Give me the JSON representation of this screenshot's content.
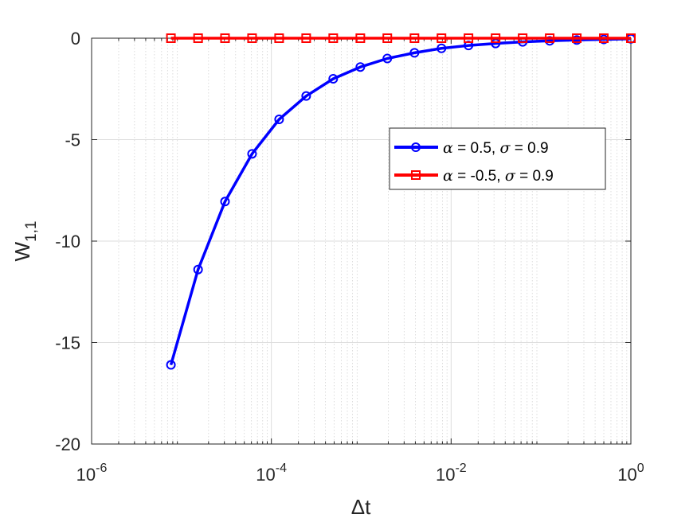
{
  "chart_data": {
    "type": "line",
    "xscale": "log",
    "xlim": [
      1e-06,
      1
    ],
    "ylim": [
      -20,
      0
    ],
    "grid": true,
    "minor_grid_x": true,
    "xlabel": "Δt",
    "ylabel": {
      "base": "W",
      "subscript": "1,1"
    },
    "x_ticks": [
      {
        "base": "10",
        "exp": "-6",
        "value": 1e-06
      },
      {
        "base": "10",
        "exp": "-4",
        "value": 0.0001
      },
      {
        "base": "10",
        "exp": "-2",
        "value": 0.01
      },
      {
        "base": "10",
        "exp": "0",
        "value": 1
      }
    ],
    "y_ticks": [
      {
        "label": "0",
        "value": 0
      },
      {
        "label": "-5",
        "value": -5
      },
      {
        "label": "-10",
        "value": -10
      },
      {
        "label": "-15",
        "value": -15
      },
      {
        "label": "-20",
        "value": -20
      }
    ],
    "legend_position": "right",
    "x": [
      7.63e-06,
      1.53e-05,
      3.05e-05,
      6.1e-05,
      0.000122,
      0.000244,
      0.000488,
      0.000977,
      0.00195,
      0.00391,
      0.00781,
      0.0156,
      0.03125,
      0.0625,
      0.125,
      0.25,
      0.5,
      1
    ],
    "series": [
      {
        "alpha": "0.5",
        "sigma": "0.9",
        "color": "#0000ff",
        "marker": "circle",
        "values": [
          -16.1,
          -11.4,
          -8.05,
          -5.7,
          -4.0,
          -2.85,
          -2.0,
          -1.42,
          -1.0,
          -0.72,
          -0.5,
          -0.36,
          -0.26,
          -0.18,
          -0.13,
          -0.09,
          -0.06,
          -0.03
        ]
      },
      {
        "alpha": "-0.5",
        "sigma": "0.9",
        "color": "#ff0000",
        "marker": "square",
        "values": [
          0,
          0,
          0,
          0,
          0,
          0,
          0,
          0,
          0,
          0,
          0,
          0,
          0,
          0,
          0,
          0,
          0,
          0
        ]
      }
    ]
  }
}
